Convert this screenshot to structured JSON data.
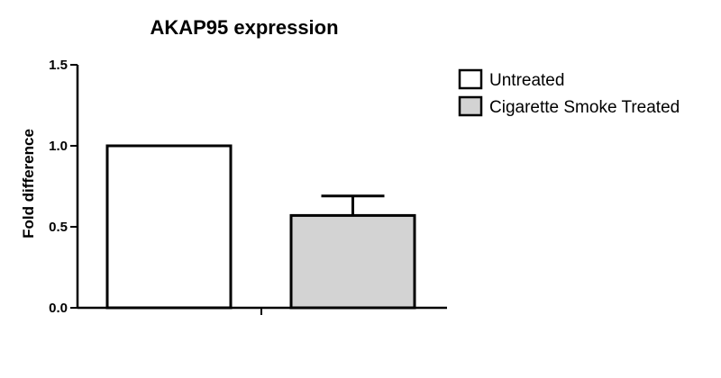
{
  "chart_data": {
    "type": "bar",
    "title": "AKAP95 expression",
    "ylabel": "Fold difference",
    "xlabel": "",
    "ylim": [
      0,
      1.5
    ],
    "yticks": [
      "0.0",
      "0.5",
      "1.0",
      "1.5"
    ],
    "grid": false,
    "legend_position": "top-right",
    "series": [
      {
        "name": "Untreated",
        "value": 1.0,
        "error": 0,
        "color": "#ffffff"
      },
      {
        "name": "Cigarette Smoke Treated",
        "value": 0.57,
        "error": 0.12,
        "color": "#d3d3d3"
      }
    ]
  }
}
